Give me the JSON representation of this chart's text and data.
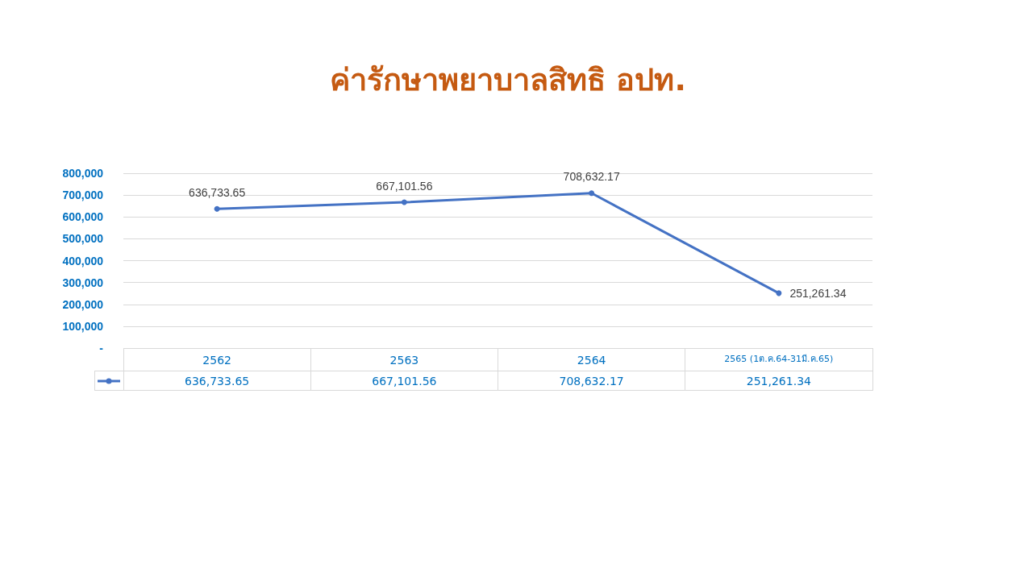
{
  "chart_data": {
    "type": "line",
    "title": "ค่ารักษาพยาบาลสิทธิ อปท.",
    "categories": [
      "2562",
      "2563",
      "2564",
      "2565 (1ต.ค.64-31มี.ค.65)"
    ],
    "series": [
      {
        "color": "#4472c4",
        "values": [
          636733.65,
          667101.56,
          708632.17,
          251261.34
        ],
        "value_labels": [
          "636,733.65",
          "667,101.56",
          "708,632.17",
          "251,261.34"
        ]
      }
    ],
    "ylim": [
      0,
      800000
    ],
    "yticks": [
      {
        "value": 0,
        "label": "-"
      },
      {
        "value": 100000,
        "label": "100,000"
      },
      {
        "value": 200000,
        "label": "200,000"
      },
      {
        "value": 300000,
        "label": "300,000"
      },
      {
        "value": 400000,
        "label": "400,000"
      },
      {
        "value": 500000,
        "label": "500,000"
      },
      {
        "value": 600000,
        "label": "600,000"
      },
      {
        "value": 700000,
        "label": "700,000"
      },
      {
        "value": 800000,
        "label": "800,000"
      }
    ],
    "grid": "y",
    "marker": "circle",
    "line_style": "solid"
  }
}
